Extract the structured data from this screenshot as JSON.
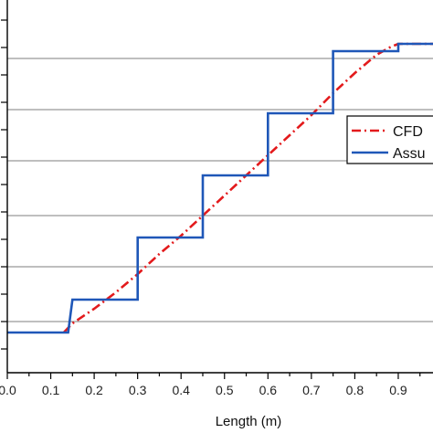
{
  "chart_data": {
    "type": "line",
    "xlabel": "Length (m)",
    "ylabel": "",
    "xlim": [
      0,
      0.98
    ],
    "ylim": [
      0,
      1
    ],
    "grid": true,
    "legend_position": "right",
    "x_ticks": [
      0.0,
      0.1,
      0.2,
      0.3,
      0.4,
      0.5,
      0.6,
      0.7,
      0.8,
      0.9
    ],
    "x_tick_labels": [
      "0.0",
      "0.1",
      "0.2",
      "0.3",
      "0.4",
      "0.5",
      "0.6",
      "0.7",
      "0.8",
      "0.9"
    ],
    "y_gridlines": [
      0.14,
      0.29,
      0.43,
      0.58,
      0.72,
      0.86
    ],
    "series": [
      {
        "name": "CFD",
        "color": "#e31a1c",
        "style": "dash-dot",
        "x": [
          0.13,
          0.15,
          0.2,
          0.25,
          0.3,
          0.35,
          0.4,
          0.45,
          0.5,
          0.55,
          0.6,
          0.65,
          0.7,
          0.75,
          0.8,
          0.85,
          0.88,
          0.9,
          0.98
        ],
        "y": [
          0.11,
          0.135,
          0.175,
          0.22,
          0.27,
          0.325,
          0.375,
          0.43,
          0.485,
          0.54,
          0.595,
          0.65,
          0.705,
          0.765,
          0.82,
          0.87,
          0.89,
          0.9,
          0.9
        ]
      },
      {
        "name": "Assu",
        "color": "#1f57b8",
        "style": "solid",
        "x": [
          0.0,
          0.14,
          0.15,
          0.3,
          0.3,
          0.45,
          0.45,
          0.6,
          0.6,
          0.75,
          0.75,
          0.9,
          0.9,
          0.98
        ],
        "y": [
          0.11,
          0.11,
          0.2,
          0.2,
          0.37,
          0.37,
          0.54,
          0.54,
          0.71,
          0.71,
          0.88,
          0.88,
          0.9,
          0.9
        ]
      }
    ]
  }
}
